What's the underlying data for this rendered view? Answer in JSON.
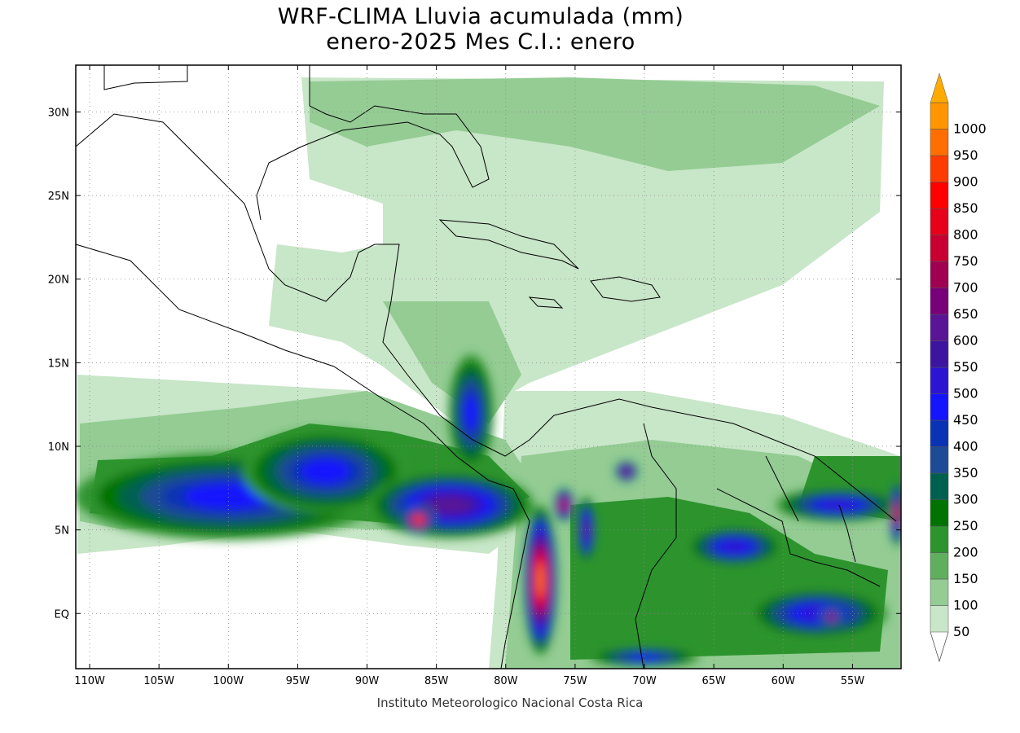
{
  "title_line1": "WRF-CLIMA Lluvia acumulada (mm)",
  "title_line2": "enero-2025 Mes C.I.: enero",
  "credit": "Instituto Meteorologico Nacional Costa Rica",
  "lon_labels": [
    "110W",
    "105W",
    "100W",
    "95W",
    "90W",
    "85W",
    "80W",
    "75W",
    "70W",
    "65W",
    "60W",
    "55W"
  ],
  "lat_labels": [
    "30N",
    "25N",
    "20N",
    "15N",
    "10N",
    "5N",
    "EQ"
  ],
  "map_extent": {
    "lon_min": -111,
    "lon_max": -51.5,
    "lat_min": -3.3,
    "lat_max": 32.8
  },
  "legend": {
    "levels": [
      "50",
      "100",
      "150",
      "200",
      "250",
      "300",
      "350",
      "400",
      "450",
      "500",
      "550",
      "600",
      "650",
      "700",
      "750",
      "800",
      "850",
      "900",
      "950",
      "1000"
    ],
    "colors": [
      "#c8e6c8",
      "#94cc94",
      "#5faf5f",
      "#2d942d",
      "#007300",
      "#006050",
      "#1e4b96",
      "#0a32b4",
      "#1414ff",
      "#2d14d2",
      "#3c14a0",
      "#5a1496",
      "#780078",
      "#a00050",
      "#c80032",
      "#e60019",
      "#ff0000",
      "#ff3c00",
      "#ff6e00",
      "#ff9600"
    ],
    "top_arrow_color": "#ffaa00"
  },
  "rain_cells": [
    {
      "name": "itcz-west",
      "lon": -100,
      "lat": 7,
      "rx": 11,
      "ry": 2.6,
      "value": 450
    },
    {
      "name": "itcz-mid",
      "lon": -93,
      "lat": 8.5,
      "rx": 6,
      "ry": 2.5,
      "value": 450
    },
    {
      "name": "itcz-east",
      "lon": -84,
      "lat": 6.5,
      "rx": 6,
      "ry": 2,
      "value": 600
    },
    {
      "name": "pacific-core",
      "lon": -86.3,
      "lat": 5.6,
      "rx": 1.2,
      "ry": 0.8,
      "value": 950
    },
    {
      "name": "caribbean-honduras",
      "lon": -82.5,
      "lat": 12,
      "rx": 1.6,
      "ry": 3.5,
      "value": 450
    },
    {
      "name": "colombia-pacific-coast",
      "lon": -77.5,
      "lat": 2,
      "rx": 1.2,
      "ry": 4.5,
      "value": 950
    },
    {
      "name": "choco",
      "lon": -75.8,
      "lat": 6.5,
      "rx": 0.7,
      "ry": 1,
      "value": 800
    },
    {
      "name": "magdalena",
      "lon": -74.2,
      "lat": 5,
      "rx": 0.7,
      "ry": 2,
      "value": 600
    },
    {
      "name": "catatumbo",
      "lon": -71.3,
      "lat": 8.5,
      "rx": 0.8,
      "ry": 0.6,
      "value": 700
    },
    {
      "name": "amazon-north",
      "lon": -63.5,
      "lat": 4,
      "rx": 3.5,
      "ry": 1.2,
      "value": 500
    },
    {
      "name": "guyana-coast",
      "lon": -56,
      "lat": 6.5,
      "rx": 4.5,
      "ry": 1,
      "value": 500
    },
    {
      "name": "amazon-south",
      "lon": -57.5,
      "lat": 0,
      "rx": 5,
      "ry": 1.5,
      "value": 500
    },
    {
      "name": "amazon-core",
      "lon": -56.5,
      "lat": -0.2,
      "rx": 0.8,
      "ry": 0.6,
      "value": 750
    },
    {
      "name": "peru-south",
      "lon": -70,
      "lat": -2.6,
      "rx": 4,
      "ry": 0.6,
      "value": 450
    },
    {
      "name": "atlantic-edge",
      "lon": -51.8,
      "lat": 6,
      "rx": 0.5,
      "ry": 2,
      "value": 800
    }
  ]
}
